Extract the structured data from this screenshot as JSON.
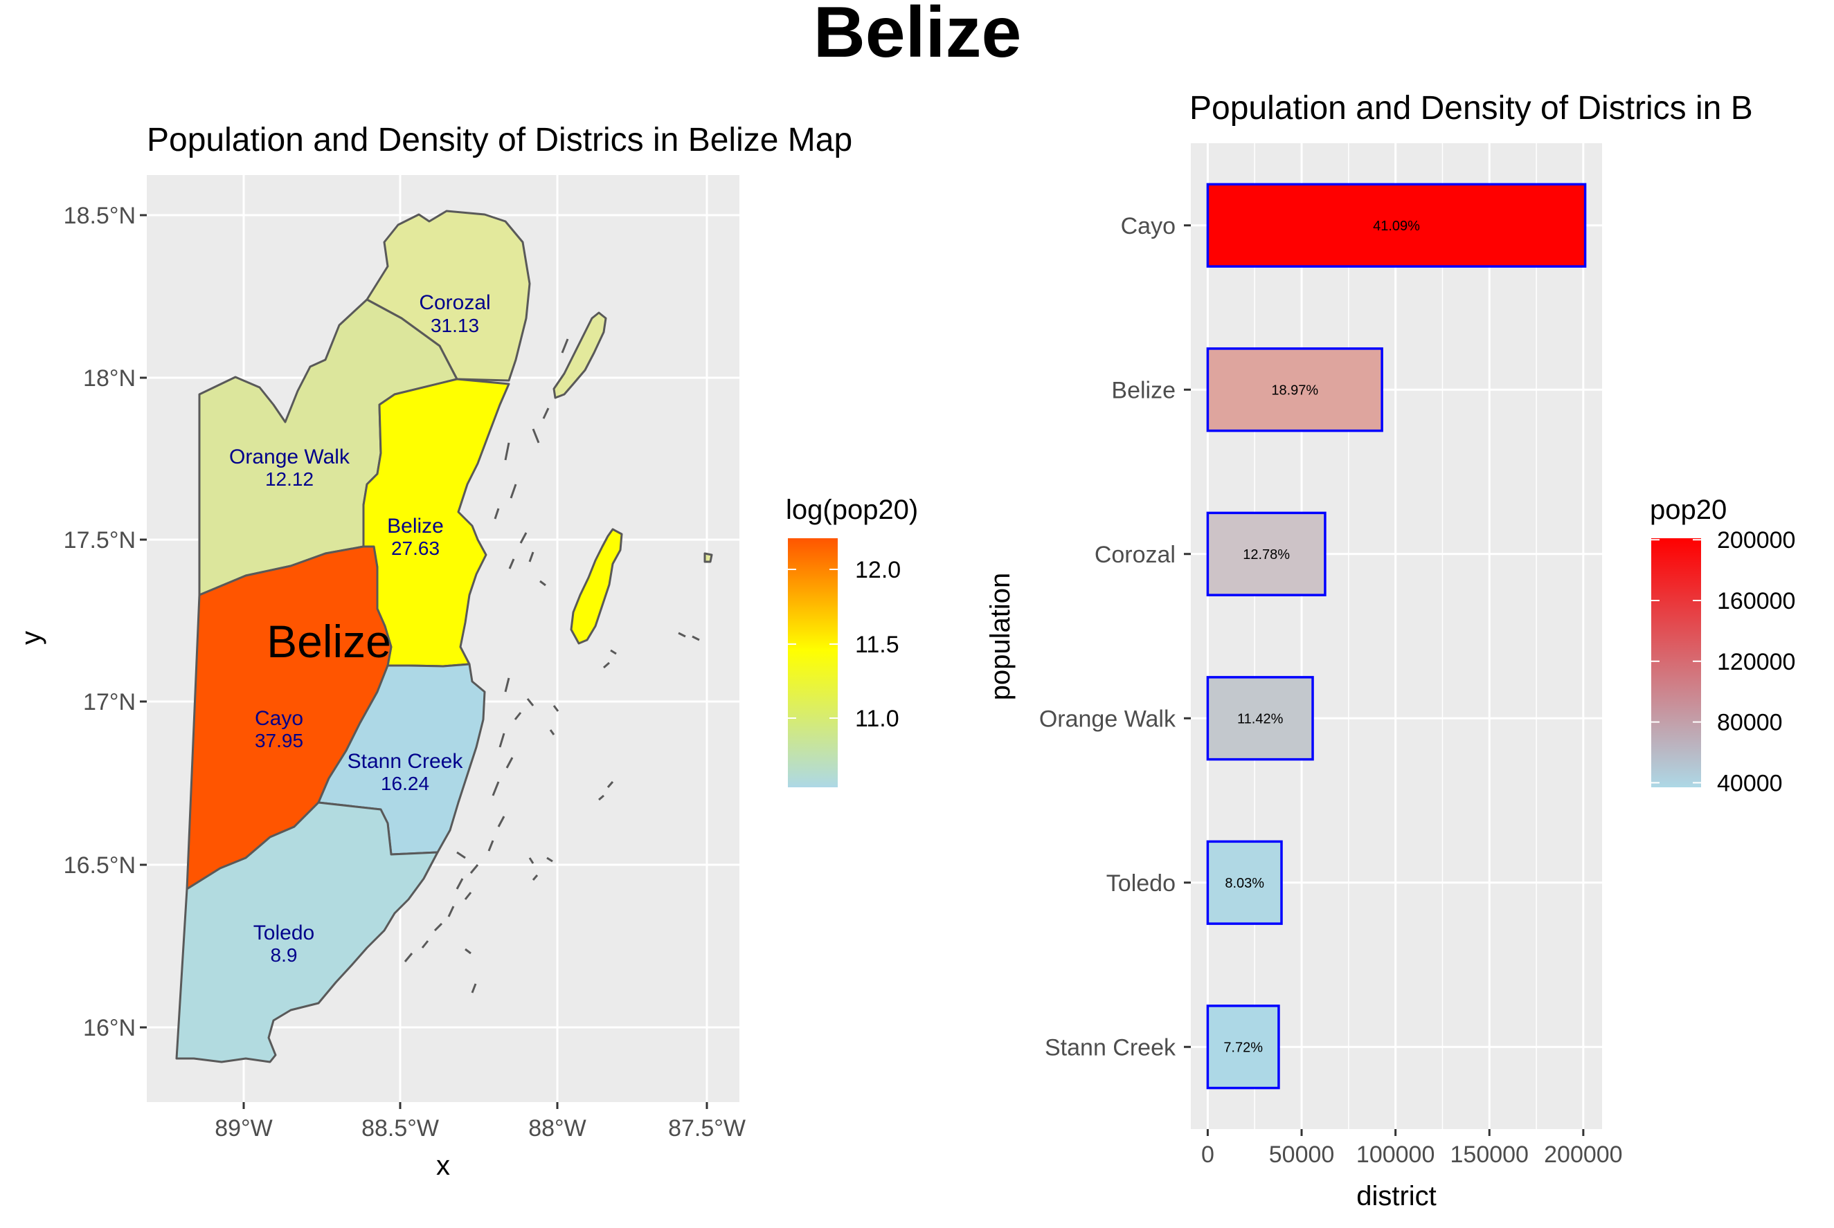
{
  "figure_title": "Belize",
  "map": {
    "title": "Population and Density of Districs in Belize Map",
    "xlabel": "x",
    "ylabel": "y",
    "x_ticks": [
      "89°W",
      "88.5°W",
      "88°W",
      "87.5°W"
    ],
    "y_ticks": [
      "18.5°N",
      "18°N",
      "17.5°N",
      "17°N",
      "16.5°N",
      "16°N"
    ],
    "country_label": "Belize",
    "legend_title": "log(pop20)",
    "legend_ticks": [
      "12.0",
      "11.5",
      "11.0"
    ],
    "legend_range": [
      10.6,
      12.2
    ],
    "legend_colors": [
      "#add8e6",
      "#ffff00",
      "#ff5500"
    ],
    "districts": [
      {
        "name": "Corozal",
        "density": "31.13",
        "fill": "#e3e99c"
      },
      {
        "name": "Orange Walk",
        "density": "12.12",
        "fill": "#dce69c"
      },
      {
        "name": "Belize",
        "density": "27.63",
        "fill": "#ffff00"
      },
      {
        "name": "Cayo",
        "density": "37.95",
        "fill": "#ff5500"
      },
      {
        "name": "Stann Creek",
        "density": "16.24",
        "fill": "#add8e6"
      },
      {
        "name": "Toledo",
        "density": "8.9",
        "fill": "#b2dbe0"
      }
    ],
    "colors": {
      "panel": "#ebebeb",
      "grid": "#ffffff",
      "border": "#595959",
      "label": "#00008b"
    }
  },
  "chart_data": {
    "type": "bar",
    "orientation": "horizontal",
    "title": "Population and Density of Districs in B",
    "xlabel": "district",
    "ylabel": "population",
    "categories": [
      "Cayo",
      "Belize",
      "Corozal",
      "Orange Walk",
      "Toledo",
      "Stann Creek"
    ],
    "values": [
      201000,
      92800,
      62500,
      55900,
      39300,
      37800
    ],
    "percent_labels": [
      "41.09%",
      "18.97%",
      "12.78%",
      "11.42%",
      "8.03%",
      "7.72%"
    ],
    "bar_fills": [
      "#ff0000",
      "#dea59e",
      "#cdc3c7",
      "#c3c8cd",
      "#b0d8e4",
      "#add8e6"
    ],
    "bar_border": "#0000ff",
    "xlim": [
      -9000,
      210000
    ],
    "x_ticks": [
      0,
      50000,
      100000,
      150000,
      200000
    ],
    "x_tick_labels": [
      "0",
      "50000",
      "100000",
      "150000",
      "200000"
    ],
    "grid": true,
    "legend_title": "pop20",
    "legend_ticks": [
      "200000",
      "160000",
      "120000",
      "80000",
      "40000"
    ],
    "legend_values": [
      200000,
      160000,
      120000,
      80000,
      40000
    ],
    "legend_range": [
      37000,
      201000
    ],
    "legend_colors": [
      "#add8e6",
      "#ff0000"
    ],
    "legend_position": "right"
  }
}
